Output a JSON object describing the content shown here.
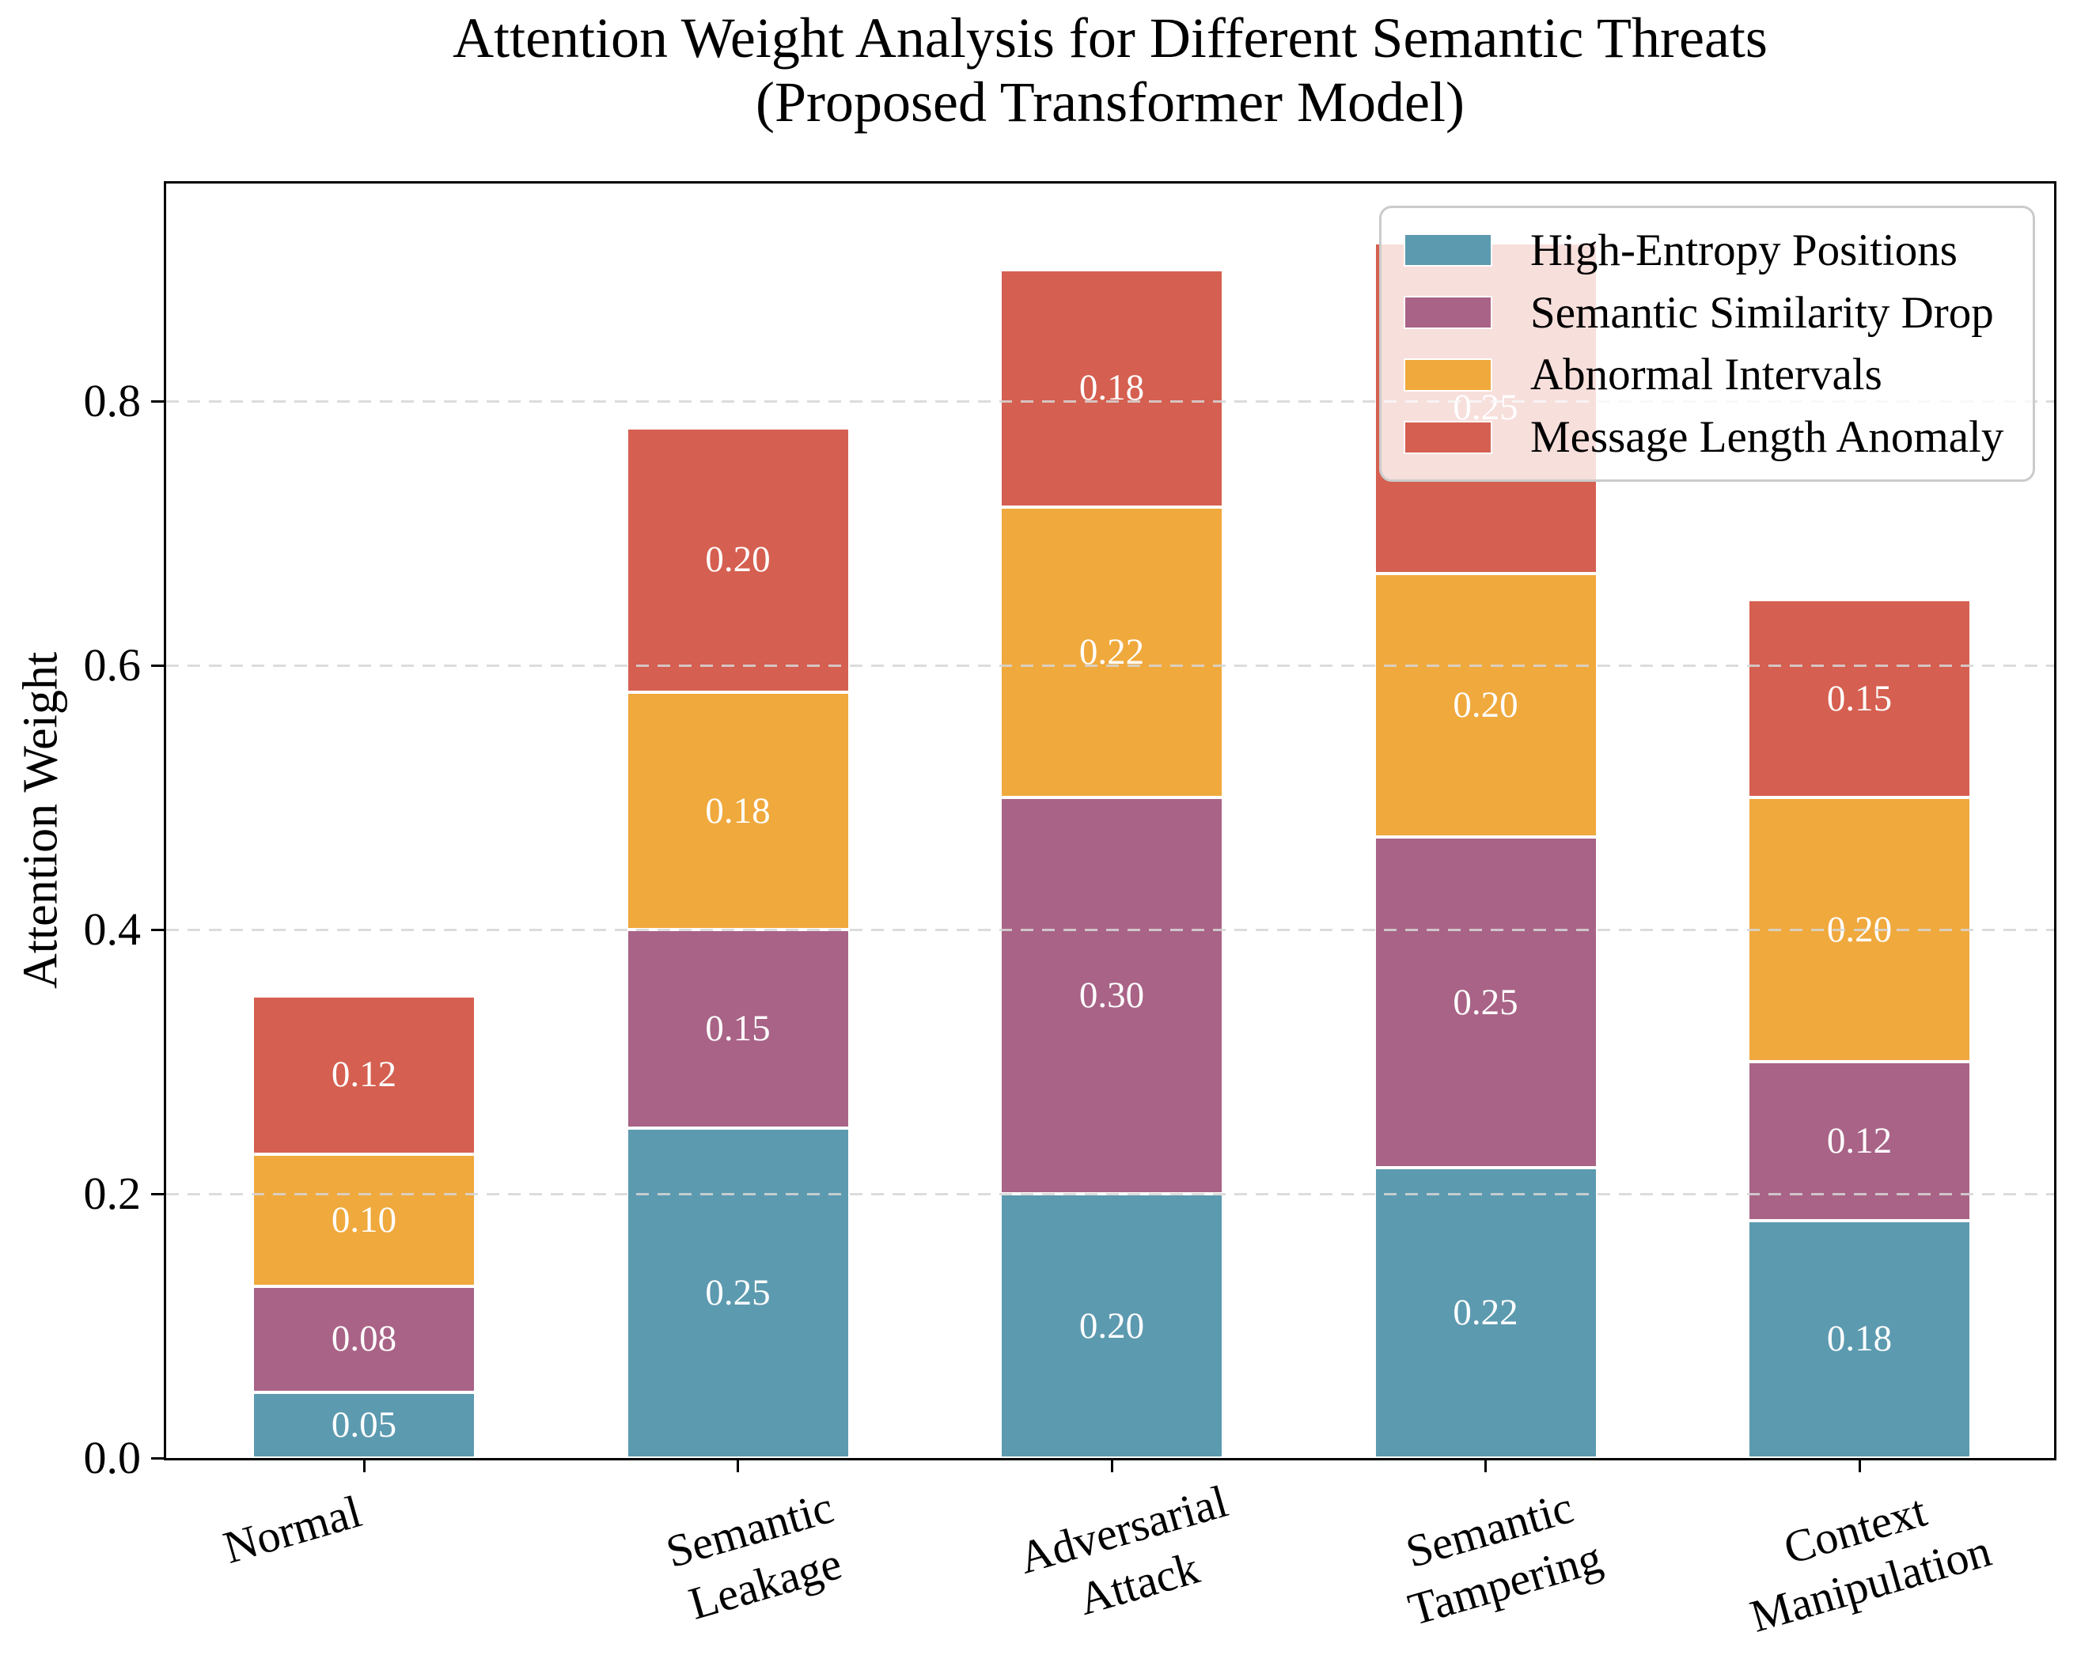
{
  "chart_data": {
    "type": "bar",
    "stacked": true,
    "title": "Attention Weight Analysis for Different Semantic Threats\n(Proposed Transformer Model)",
    "ylabel": "Attention Weight",
    "xlabel": "",
    "categories": [
      "Normal",
      "Semantic\nLeakage",
      "Adversarial\nAttack",
      "Semantic\nTampering",
      "Context\nManipulation"
    ],
    "series": [
      {
        "name": "High-Entropy Positions",
        "color": "#5C9AB0",
        "values": [
          0.05,
          0.25,
          0.2,
          0.22,
          0.18
        ],
        "labels": [
          "0.05",
          "0.25",
          "0.20",
          "0.22",
          "0.18"
        ]
      },
      {
        "name": "Semantic Similarity Drop",
        "color": "#A96386",
        "values": [
          0.08,
          0.15,
          0.3,
          0.25,
          0.12
        ],
        "labels": [
          "0.08",
          "0.15",
          "0.30",
          "0.25",
          "0.12"
        ]
      },
      {
        "name": "Abnormal Intervals",
        "color": "#F0A93D",
        "values": [
          0.1,
          0.18,
          0.22,
          0.2,
          0.2
        ],
        "labels": [
          "0.10",
          "0.18",
          "0.22",
          "0.20",
          "0.20"
        ]
      },
      {
        "name": "Message Length Anomaly",
        "color": "#D55F50",
        "values": [
          0.12,
          0.2,
          0.18,
          0.25,
          0.15
        ],
        "labels": [
          "0.12",
          "0.20",
          "0.18",
          "0.25",
          "0.15"
        ]
      }
    ],
    "totals": [
      0.35,
      0.78,
      0.9,
      0.92,
      0.65
    ],
    "yticks": [
      {
        "value": 0.0,
        "label": "0.0"
      },
      {
        "value": 0.2,
        "label": "0.2"
      },
      {
        "value": 0.4,
        "label": "0.4"
      },
      {
        "value": 0.6,
        "label": "0.6"
      },
      {
        "value": 0.8,
        "label": "0.8"
      }
    ],
    "ylim": [
      0,
      0.965
    ],
    "grid": "dashed-horizontal",
    "legend_position": "upper right",
    "bar_label_color": "#FFFFFF",
    "text_color": "#000000",
    "background_color": "#FFFFFF"
  }
}
